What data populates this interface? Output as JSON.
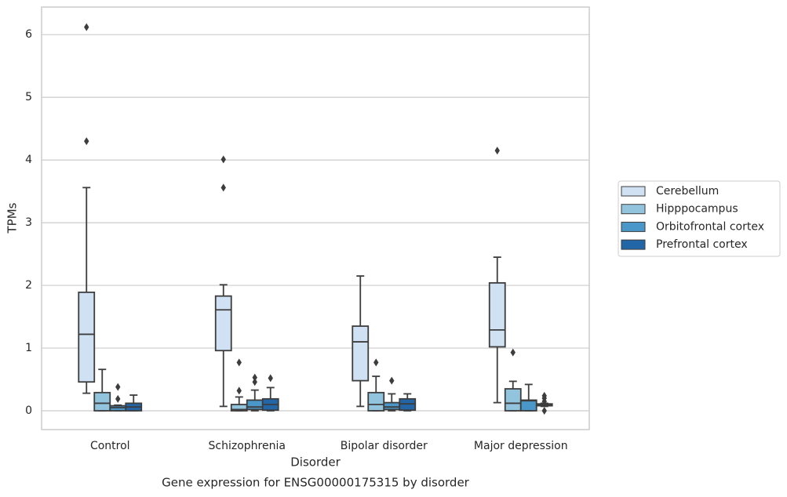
{
  "chart_data": {
    "type": "box",
    "title": "Gene expression for ENSG00000175315 by disorder",
    "x_label": "Disorder",
    "y_label": "TPMs",
    "categories": [
      "Control",
      "Schizophrenia",
      "Bipolar disorder",
      "Major depression"
    ],
    "ylim": [
      -0.3,
      6.44
    ],
    "yticks": [
      0,
      1,
      2,
      3,
      4,
      5,
      6
    ],
    "grid": true,
    "legend": "right",
    "series": [
      {
        "name": "Cerebellum",
        "color": "#cfe1f2",
        "boxes": [
          {
            "whislo": 0.28,
            "q1": 0.46,
            "med": 1.22,
            "q3": 1.89,
            "whishi": 3.56,
            "fliers": [
              4.3,
              6.12
            ]
          },
          {
            "whislo": 0.07,
            "q1": 0.96,
            "med": 1.61,
            "q3": 1.83,
            "whishi": 2.01,
            "fliers": [
              3.56,
              4.01
            ]
          },
          {
            "whislo": 0.07,
            "q1": 0.48,
            "med": 1.1,
            "q3": 1.35,
            "whishi": 2.15,
            "fliers": []
          },
          {
            "whislo": 0.13,
            "q1": 1.02,
            "med": 1.29,
            "q3": 2.04,
            "whishi": 2.45,
            "fliers": [
              4.15
            ]
          }
        ]
      },
      {
        "name": "Hipppocampus",
        "color": "#93c4de",
        "boxes": [
          {
            "whislo": 0,
            "q1": 0,
            "med": 0.12,
            "q3": 0.29,
            "whishi": 0.66,
            "fliers": []
          },
          {
            "whislo": 0,
            "q1": 0,
            "med": 0.02,
            "q3": 0.1,
            "whishi": 0.22,
            "fliers": [
              0.32,
              0.77
            ]
          },
          {
            "whislo": 0,
            "q1": 0,
            "med": 0.1,
            "q3": 0.29,
            "whishi": 0.55,
            "fliers": [
              0.77
            ]
          },
          {
            "whislo": 0,
            "q1": 0,
            "med": 0.12,
            "q3": 0.35,
            "whishi": 0.47,
            "fliers": [
              0.93
            ]
          }
        ]
      },
      {
        "name": "Orbitofrontal cortex",
        "color": "#4a97c9",
        "boxes": [
          {
            "whislo": 0,
            "q1": 0,
            "med": 0.05,
            "q3": 0.08,
            "whishi": 0.09,
            "fliers": [
              0.19,
              0.38
            ]
          },
          {
            "whislo": 0,
            "q1": 0.02,
            "med": 0.06,
            "q3": 0.17,
            "whishi": 0.33,
            "fliers": [
              0.46,
              0.53
            ]
          },
          {
            "whislo": 0,
            "q1": 0.02,
            "med": 0.06,
            "q3": 0.13,
            "whishi": 0.27,
            "fliers": [
              0.48
            ]
          },
          {
            "whislo": 0,
            "q1": 0,
            "med": 0.16,
            "q3": 0.17,
            "whishi": 0.42,
            "fliers": []
          }
        ]
      },
      {
        "name": "Prefrontal cortex",
        "color": "#2366a8",
        "boxes": [
          {
            "whislo": 0,
            "q1": 0,
            "med": 0.06,
            "q3": 0.12,
            "whishi": 0.25,
            "fliers": []
          },
          {
            "whislo": 0,
            "q1": 0.01,
            "med": 0.1,
            "q3": 0.19,
            "whishi": 0.37,
            "fliers": [
              0.52
            ]
          },
          {
            "whislo": 0,
            "q1": 0.01,
            "med": 0.11,
            "q3": 0.19,
            "whishi": 0.27,
            "fliers": []
          },
          {
            "whislo": 0.07,
            "q1": 0.08,
            "med": 0.09,
            "q3": 0.11,
            "whishi": 0.12,
            "fliers": [
              0,
              0.15,
              0.2,
              0.24
            ]
          }
        ]
      }
    ]
  }
}
